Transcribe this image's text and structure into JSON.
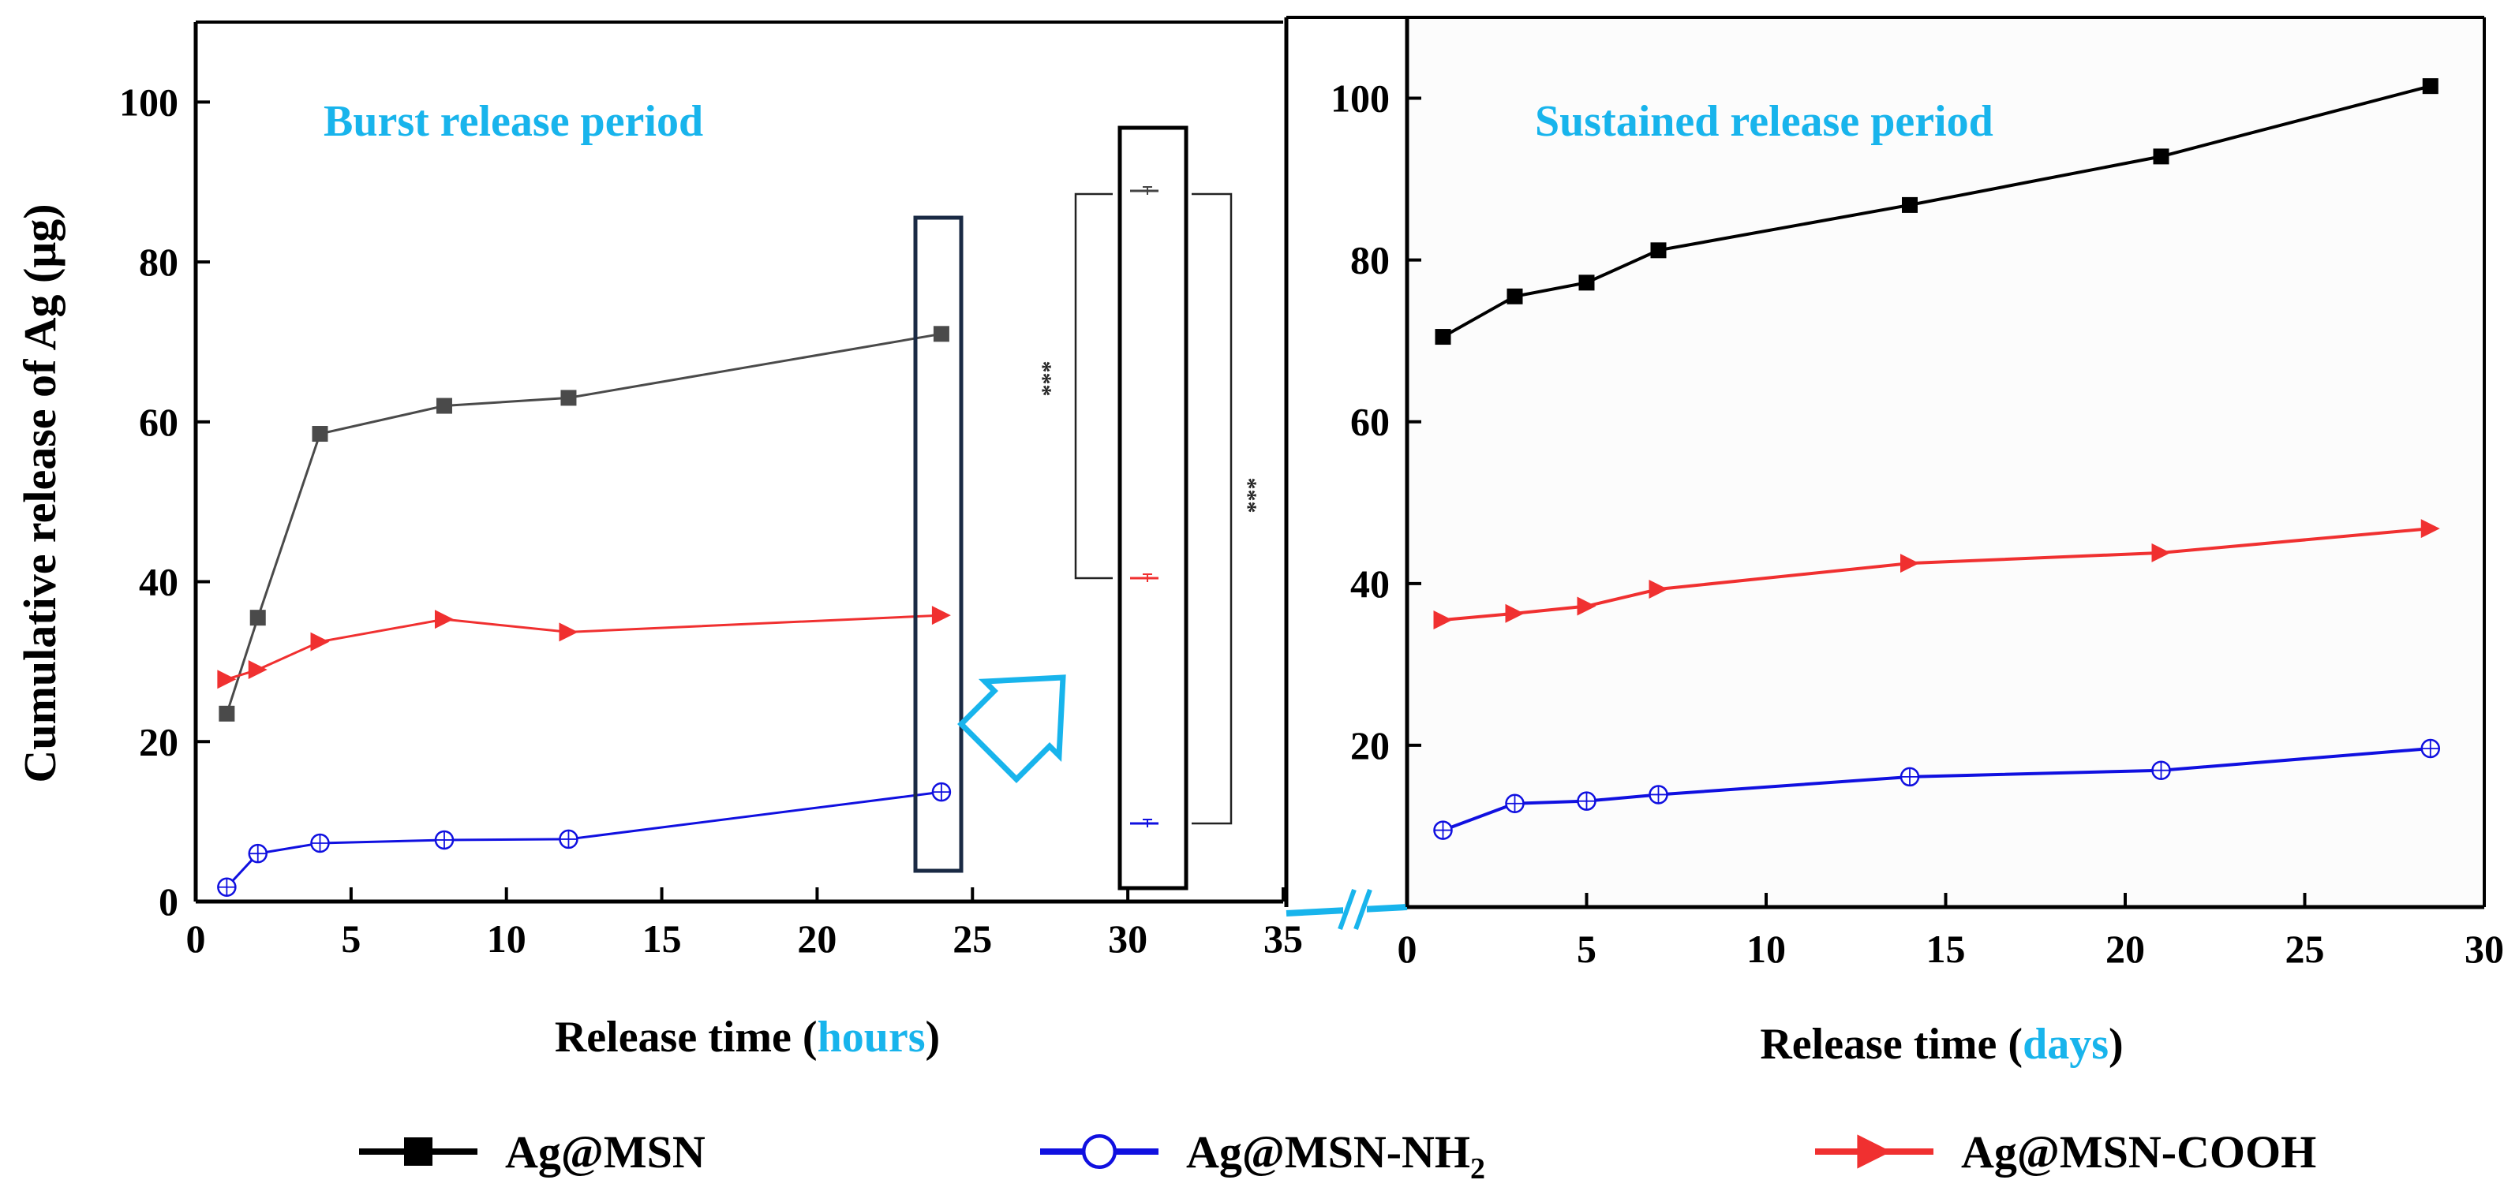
{
  "colors": {
    "ag_msn_left": "#4a4a4a",
    "ag_msn_right": "#000000",
    "nh2": "#1010e0",
    "cooh": "#f03030",
    "accent": "#18b4ec",
    "frame": "#000000",
    "box_left": "#1a2a44"
  },
  "legend": [
    {
      "key": "ag_msn",
      "label": "Ag@MSN",
      "marker": "square",
      "color": "#000000"
    },
    {
      "key": "nh2",
      "label": "Ag@MSN-NH",
      "sub": "2",
      "marker": "circle",
      "color": "#1010e0"
    },
    {
      "key": "cooh",
      "label": "Ag@MSN-COOH",
      "marker": "triangle-right",
      "color": "#f03030"
    }
  ],
  "chart_data": [
    {
      "type": "line",
      "title": "Burst release period",
      "ylabel": "Cumulative release of Ag (μg)",
      "xlabel_prefix": "Release time (",
      "xlabel_unit": "hours",
      "xlabel_suffix": ")",
      "xlim": [
        0,
        35
      ],
      "ylim": [
        0,
        110
      ],
      "xticks": [
        0,
        5,
        10,
        15,
        20,
        25,
        30,
        35
      ],
      "yticks": [
        0,
        20,
        40,
        60,
        80,
        100
      ],
      "series": [
        {
          "key": "ag_msn",
          "name": "Ag@MSN",
          "x": [
            1,
            2,
            4,
            8,
            12,
            24
          ],
          "y": [
            23.5,
            35.5,
            58.5,
            62,
            63,
            71
          ]
        },
        {
          "key": "cooh",
          "name": "Ag@MSN-COOH",
          "x": [
            1,
            2,
            4,
            8,
            12,
            24
          ],
          "y": [
            27.8,
            29,
            32.5,
            35.3,
            33.7,
            35.8
          ]
        },
        {
          "key": "nh2",
          "name": "Ag@MSN-NH2",
          "x": [
            1,
            2,
            4,
            8,
            12,
            24
          ],
          "y": [
            1.8,
            6,
            7.3,
            7.7,
            7.8,
            13.7
          ]
        }
      ],
      "zoom_inset": {
        "x": 30.5,
        "values": {
          "ag_msn": 88.6,
          "cooh": 40.3,
          "nh2": 9.8
        },
        "significance": [
          "***",
          "***"
        ]
      }
    },
    {
      "type": "line",
      "title": "Sustained release period",
      "xlabel_prefix": "Release time (",
      "xlabel_unit": "days",
      "xlabel_suffix": ")",
      "xlim": [
        0,
        30
      ],
      "ylim": [
        0,
        110
      ],
      "xticks": [
        0,
        5,
        10,
        15,
        20,
        25,
        30
      ],
      "yticks": [
        20,
        40,
        60,
        80,
        100
      ],
      "series": [
        {
          "key": "ag_msn",
          "name": "Ag@MSN",
          "x": [
            1,
            3,
            5,
            7,
            14,
            21,
            28.5
          ],
          "y": [
            70.5,
            75.5,
            77.2,
            81.2,
            86.8,
            92.8,
            101.5
          ]
        },
        {
          "key": "cooh",
          "name": "Ag@MSN-COOH",
          "x": [
            1,
            3,
            5,
            7,
            14,
            21,
            28.5
          ],
          "y": [
            35.5,
            36.3,
            37.2,
            39.3,
            42.5,
            43.8,
            46.8
          ]
        },
        {
          "key": "nh2",
          "name": "Ag@MSN-NH2",
          "x": [
            1,
            3,
            5,
            7,
            14,
            21,
            28.5
          ],
          "y": [
            9.5,
            12.8,
            13.1,
            13.9,
            16.1,
            16.9,
            19.6
          ]
        }
      ]
    }
  ]
}
